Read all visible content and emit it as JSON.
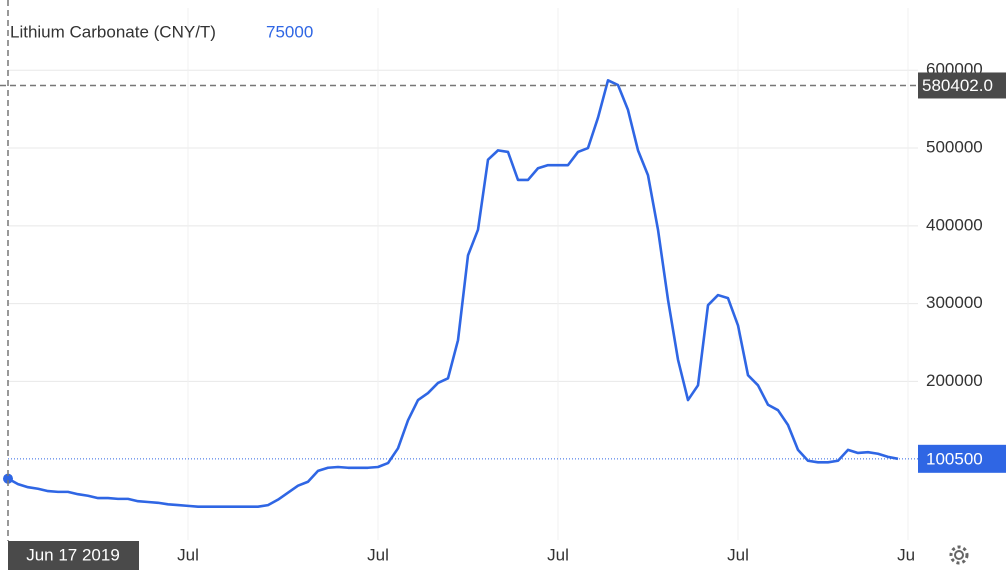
{
  "chart_data": {
    "type": "line",
    "title": "Lithium Carbonate (CNY/T)",
    "categories": [
      "Jun 17 2019",
      null,
      null,
      null,
      null,
      null,
      null,
      null,
      null,
      null,
      null,
      null,
      null,
      null,
      null,
      null,
      null,
      null,
      "Jul",
      null,
      null,
      null,
      null,
      null,
      null,
      null,
      null,
      null,
      null,
      null,
      null,
      null,
      null,
      null,
      null,
      null,
      null,
      "Jul",
      null,
      null,
      null,
      null,
      null,
      null,
      null,
      null,
      null,
      null,
      null,
      null,
      null,
      null,
      null,
      null,
      null,
      "Jul",
      null,
      null,
      null,
      null,
      null,
      null,
      null,
      null,
      null,
      null,
      null,
      null,
      null,
      null,
      null,
      null,
      null,
      "Jul",
      null,
      null,
      null,
      null,
      null,
      null,
      null,
      null,
      null,
      null,
      null,
      null,
      null,
      null,
      null,
      null,
      "Jul"
    ],
    "series": [
      {
        "name": "Lithium Carbonate",
        "color": "#2f66e4",
        "values": [
          75000,
          68000,
          64000,
          62000,
          59000,
          58000,
          58000,
          55000,
          53000,
          50000,
          50000,
          49000,
          49000,
          46000,
          45000,
          44000,
          42000,
          41000,
          40000,
          39000,
          39000,
          39000,
          39000,
          39000,
          39000,
          39000,
          41000,
          48000,
          57000,
          66000,
          71000,
          85000,
          89000,
          90000,
          89000,
          89000,
          89000,
          90000,
          95000,
          114000,
          150000,
          176000,
          185000,
          198000,
          204000,
          253000,
          362000,
          395000,
          485000,
          497000,
          495000,
          459000,
          459000,
          474000,
          478000,
          478000,
          478000,
          495000,
          500000,
          539000,
          587000,
          581000,
          549000,
          497000,
          465000,
          395000,
          305000,
          228000,
          176000,
          195000,
          298000,
          311000,
          307000,
          272000,
          208000,
          195000,
          170000,
          163000,
          144000,
          112000,
          98000,
          96000,
          96000,
          98000,
          112000,
          108000,
          109000,
          107000,
          103000,
          100500,
          null
        ]
      }
    ],
    "crosshair": {
      "value": 580402,
      "label": "580402.0"
    },
    "ylim": [
      0,
      680000
    ],
    "yticks": [
      200000,
      300000,
      400000,
      500000,
      600000
    ],
    "grid": true
  }
}
